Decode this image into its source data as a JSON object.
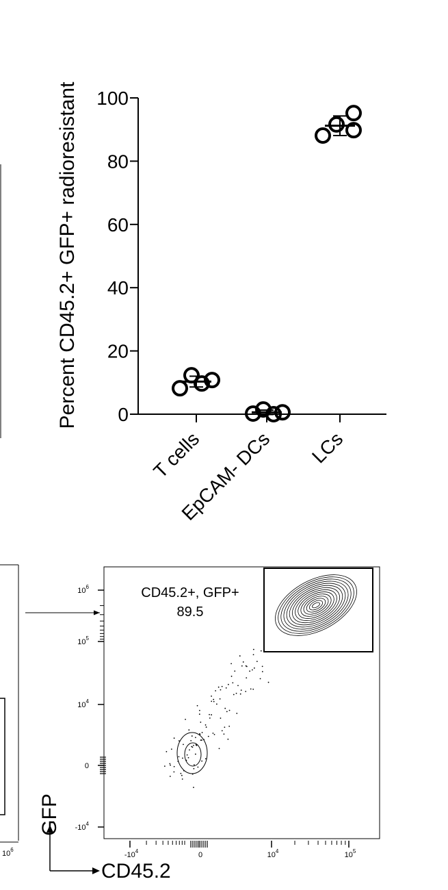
{
  "chart_data": {
    "type": "dot",
    "y_label": "Percent CD45.2+ GFP+ radioresistant",
    "categories": [
      "T cells",
      "EpCAM- DCs",
      "LCs"
    ],
    "values": [
      [
        8.2,
        12.3,
        9.7,
        10.8
      ],
      [
        0.2,
        1.5,
        0,
        0.6
      ],
      [
        88.1,
        91.6,
        95.2,
        89.8
      ]
    ],
    "means": [
      10.3,
      0.6,
      91.2
    ],
    "errors": [
      1.7,
      0.7,
      3.1
    ],
    "color": "#000000",
    "ylim": [
      0,
      100
    ],
    "yticks": [
      0,
      20,
      40,
      60,
      80,
      100
    ]
  },
  "flow_plot": {
    "x_label": "CD45.2",
    "y_label": "GFP",
    "gate_label": "CD45.2+, GFP+",
    "gate_value": 89.5,
    "y_tick_labels": [
      {
        "base": "10",
        "exp": "6"
      },
      {
        "base": "10",
        "exp": "5"
      },
      {
        "base": "10",
        "exp": "4"
      },
      {
        "base": "0"
      },
      {
        "base": "-10",
        "exp": "4"
      }
    ],
    "x_tick_labels": [
      {
        "base": "-10",
        "exp": "4"
      },
      {
        "base": "0"
      },
      {
        "base": "10",
        "exp": "4"
      },
      {
        "base": "10",
        "exp": "5"
      }
    ],
    "left_fragment_label": {
      "base": "10",
      "exp": "6"
    }
  }
}
